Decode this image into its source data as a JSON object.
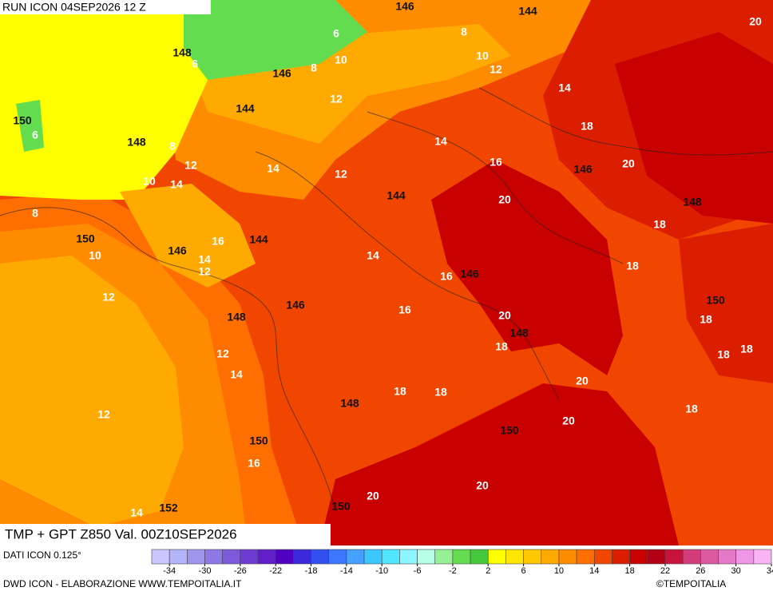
{
  "header": {
    "title": "RUN ICON 04SEP2026 12 Z"
  },
  "footer": {
    "field": "TMP + GPT Z850 Val. 00Z10SEP2026",
    "data_source": "DATI ICON 0.125°",
    "credit": "DWD ICON - ELABORAZIONE WWW.TEMPOITALIA.IT",
    "copyright": "©TEMPOITALIA"
  },
  "colorbar": {
    "ticks": [
      -34,
      -30,
      -26,
      -22,
      -18,
      -14,
      -10,
      -6,
      -2,
      2,
      6,
      10,
      14,
      18,
      22,
      26,
      30,
      34
    ],
    "colors": [
      "#c8c8ff",
      "#b4b4fa",
      "#a096f0",
      "#8c78e6",
      "#7d5adc",
      "#6e3cd2",
      "#5f1ec8",
      "#5000be",
      "#3c28dc",
      "#3250f0",
      "#3c78ff",
      "#46a0ff",
      "#3cc8ff",
      "#50e6ff",
      "#8cf5ff",
      "#b4ffe6",
      "#96f096",
      "#64dc50",
      "#46c83c",
      "#ffff00",
      "#ffe600",
      "#ffc800",
      "#ffaa00",
      "#ff8c00",
      "#ff6e00",
      "#f04600",
      "#dc1e00",
      "#c80000",
      "#b40014",
      "#c8143c",
      "#d23c78",
      "#dc5aa0",
      "#e678c8",
      "#f096e6",
      "#fab4f5"
    ]
  },
  "map": {
    "temperature_labels": [
      20,
      8,
      6,
      10,
      10,
      12,
      6,
      8,
      14,
      12,
      18,
      6,
      14,
      8,
      16,
      20,
      12,
      10,
      14,
      14,
      12,
      20,
      8,
      18,
      16,
      10,
      14,
      14,
      12,
      18,
      16,
      12,
      16,
      20,
      18,
      18,
      18,
      18,
      12,
      14,
      20,
      18,
      18,
      12,
      20,
      18,
      16,
      20,
      20,
      14
    ],
    "height_labels": [
      146,
      144,
      148,
      146,
      144,
      150,
      148,
      146,
      144,
      148,
      150,
      146,
      144,
      146,
      146,
      150,
      148,
      148,
      148,
      150,
      150,
      152,
      150
    ]
  }
}
